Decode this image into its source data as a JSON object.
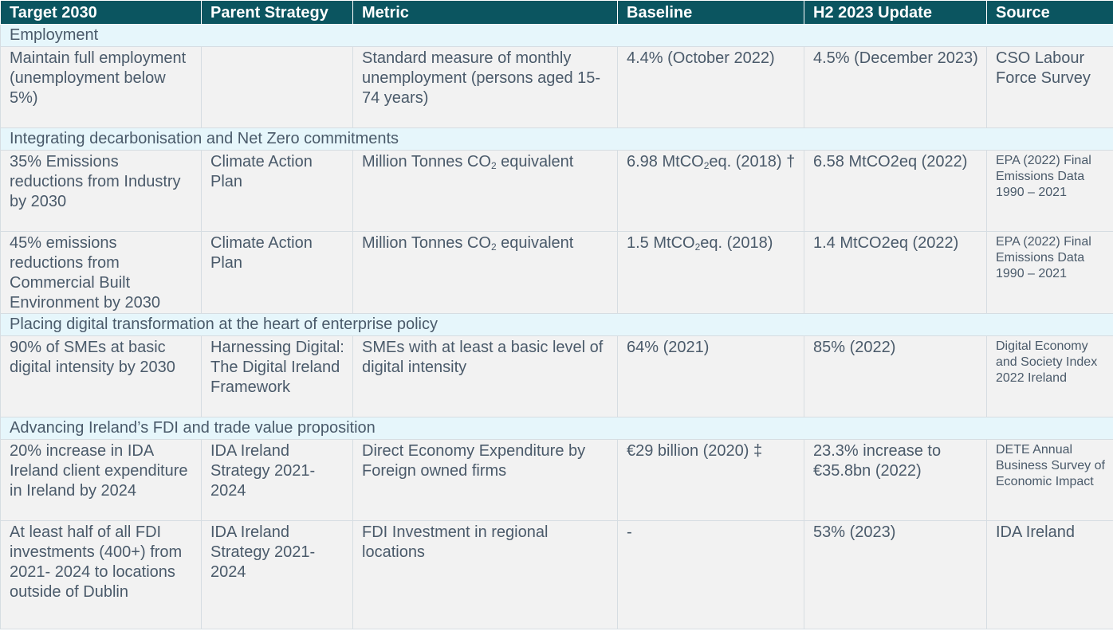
{
  "headers": [
    "Target 2030",
    "Parent Strategy",
    "Metric",
    "Baseline",
    "H2 2023 Update",
    "Source"
  ],
  "sections": {
    "employment": "Employment",
    "decarbonisation": "Integrating decarbonisation and Net Zero commitments",
    "digital": "Placing digital transformation at the heart of enterprise policy",
    "fdi": "Advancing Ireland’s FDI and trade value proposition"
  },
  "rows": [
    {
      "target": "Maintain full employment (unemployment below 5%)",
      "strategy": "",
      "metric": "Standard measure of monthly unemployment (persons aged 15-74 years)",
      "baseline": "4.4% (October 2022)",
      "update": "4.5% (December 2023)",
      "source": "CSO Labour Force Survey"
    },
    {
      "target": "35% Emissions reductions from Industry by 2030",
      "strategy": "Climate Action Plan",
      "metric_pre": "Million Tonnes CO",
      "metric_sub": "2",
      "metric_post": " equivalent",
      "baseline_pre": "6.98 MtCO",
      "baseline_sub": "2",
      "baseline_post": "eq. (2018) †",
      "update": "6.58 MtCO2eq (2022)",
      "source": "EPA (2022) Final Emissions Data 1990 – 2021"
    },
    {
      "target": "45% emissions reductions from Commercial Built Environment by 2030",
      "strategy": "Climate Action Plan",
      "metric_pre": "Million Tonnes CO",
      "metric_sub": "2",
      "metric_post": " equivalent",
      "baseline_pre": "1.5 MtCO",
      "baseline_sub": "2",
      "baseline_post": "eq. (2018)",
      "update": "1.4 MtCO2eq (2022)",
      "source": "EPA (2022) Final Emissions Data 1990 – 2021"
    },
    {
      "target": "90% of SMEs at basic digital intensity by 2030",
      "strategy": "Harnessing Digital: The Digital Ireland Framework",
      "metric": "SMEs with at least a basic level of digital intensity",
      "baseline": "64% (2021)",
      "update": "85% (2022)",
      "source": "Digital Economy and Society Index 2022 Ireland"
    },
    {
      "target": "20% increase in IDA Ireland client expenditure in Ireland by 2024",
      "strategy": "IDA Ireland Strategy 2021-2024",
      "metric": "Direct Economy Expenditure by Foreign owned firms",
      "baseline": "€29 billion (2020) ‡",
      "update": "23.3% increase to €35.8bn (2022)",
      "source": "DETE Annual Business Survey of Economic Impact"
    },
    {
      "target": "At least half of all FDI investments (400+) from 2021- 2024 to locations outside of Dublin",
      "strategy": "IDA Ireland Strategy 2021-2024",
      "metric": "FDI Investment in regional locations",
      "baseline": "-",
      "update": "53% (2023)",
      "source": "IDA Ireland"
    }
  ]
}
